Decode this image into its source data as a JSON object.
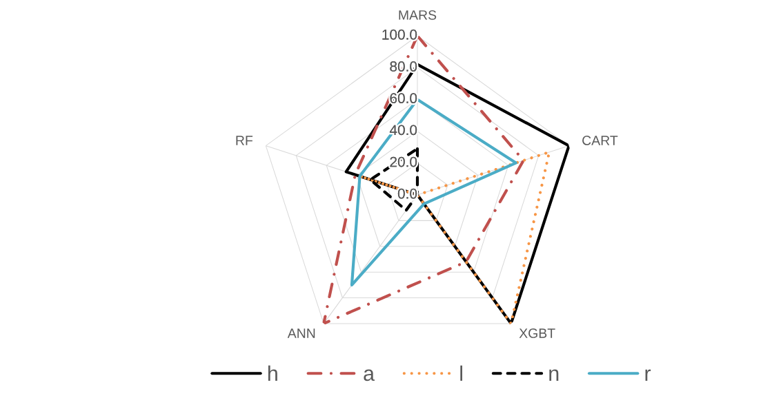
{
  "chart_data": {
    "type": "radar",
    "categories": [
      "MARS",
      "CART",
      "XGBT",
      "ANN",
      "RF"
    ],
    "ylim": [
      0,
      100
    ],
    "yticks": [
      {
        "value": 0,
        "label": "0.0"
      },
      {
        "value": 20,
        "label": "20.0"
      },
      {
        "value": 40,
        "label": "40.0"
      },
      {
        "value": 60,
        "label": "60.0"
      },
      {
        "value": 80,
        "label": "80.0"
      },
      {
        "value": 100,
        "label": "100.0"
      }
    ],
    "grid": true,
    "legend": "bottom",
    "series": [
      {
        "name": "h",
        "color": "#000000",
        "line_style": "solid",
        "values": [
          82,
          100,
          100,
          0,
          47
        ]
      },
      {
        "name": "a",
        "color": "#c0504d",
        "line_style": "dashdot",
        "values": [
          100,
          70,
          52,
          100,
          41
        ]
      },
      {
        "name": "l",
        "color": "#f79646",
        "line_style": "dotted",
        "values": [
          0,
          87,
          100,
          0,
          38
        ]
      },
      {
        "name": "n",
        "color": "#000000",
        "line_style": "dashed",
        "values": [
          29,
          0,
          0,
          12,
          31
        ]
      },
      {
        "name": "r",
        "color": "#4bacc6",
        "line_style": "solid",
        "values": [
          60,
          65,
          7,
          70,
          38
        ]
      }
    ]
  }
}
